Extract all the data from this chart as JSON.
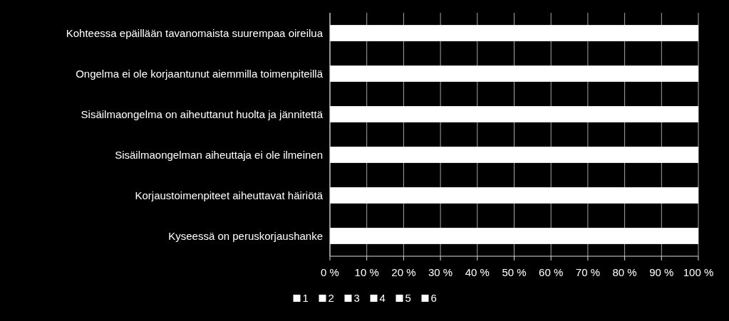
{
  "chart_data": {
    "type": "bar",
    "orientation": "horizontal",
    "categories": [
      "Kohteessa epäillään tavanomaista suurempaa oireilua",
      "Ongelma ei ole korjaantunut aiemmilla toimenpiteillä",
      "Sisäilmaongelma on aiheuttanut huolta ja jännitettä",
      "Sisäilmaongelman aiheuttaja ei ole ilmeinen",
      "Korjaustoimenpiteet aiheuttavat häiriötä",
      "Kyseessä on peruskorjaushanke"
    ],
    "series": [
      {
        "name": "1",
        "color": "#ffffff",
        "values": [
          100,
          100,
          100,
          100,
          100,
          100
        ]
      },
      {
        "name": "2",
        "color": "#ffffff",
        "values": [
          null,
          null,
          null,
          null,
          null,
          null
        ]
      },
      {
        "name": "3",
        "color": "#ffffff",
        "values": [
          null,
          null,
          null,
          null,
          null,
          null
        ]
      },
      {
        "name": "4",
        "color": "#ffffff",
        "values": [
          null,
          null,
          null,
          null,
          null,
          null
        ]
      },
      {
        "name": "5",
        "color": "#ffffff",
        "values": [
          null,
          null,
          null,
          null,
          null,
          null
        ]
      },
      {
        "name": "6",
        "color": "#ffffff",
        "values": [
          null,
          null,
          null,
          null,
          null,
          null
        ]
      }
    ],
    "xlim": [
      0,
      100
    ],
    "xticks": [
      {
        "value": 0,
        "label": "0 %"
      },
      {
        "value": 10,
        "label": "10 %"
      },
      {
        "value": 20,
        "label": "20 %"
      },
      {
        "value": 30,
        "label": "30 %"
      },
      {
        "value": 40,
        "label": "40 %"
      },
      {
        "value": 50,
        "label": "50 %"
      },
      {
        "value": 60,
        "label": "60 %"
      },
      {
        "value": 70,
        "label": "70 %"
      },
      {
        "value": 80,
        "label": "80 %"
      },
      {
        "value": 90,
        "label": "90 %"
      },
      {
        "value": 100,
        "label": "100 %"
      }
    ],
    "grid": "x",
    "legend": "bottom"
  }
}
